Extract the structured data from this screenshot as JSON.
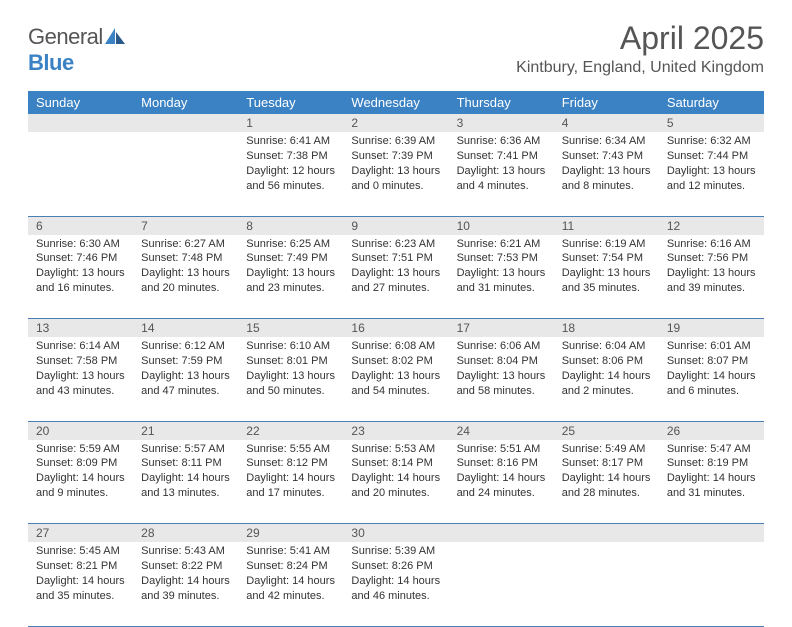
{
  "logo": {
    "text_general": "General",
    "text_blue": "Blue"
  },
  "title": "April 2025",
  "location": "Kintbury, England, United Kingdom",
  "colors": {
    "header_bg": "#3b82c4",
    "header_text": "#ffffff",
    "daynum_bg": "#e8e8e8",
    "border": "#4a7fb5",
    "text": "#333333"
  },
  "day_headers": [
    "Sunday",
    "Monday",
    "Tuesday",
    "Wednesday",
    "Thursday",
    "Friday",
    "Saturday"
  ],
  "weeks": [
    [
      {
        "n": "",
        "rise": "",
        "set": "",
        "day": ""
      },
      {
        "n": "",
        "rise": "",
        "set": "",
        "day": ""
      },
      {
        "n": "1",
        "rise": "Sunrise: 6:41 AM",
        "set": "Sunset: 7:38 PM",
        "day": "Daylight: 12 hours and 56 minutes."
      },
      {
        "n": "2",
        "rise": "Sunrise: 6:39 AM",
        "set": "Sunset: 7:39 PM",
        "day": "Daylight: 13 hours and 0 minutes."
      },
      {
        "n": "3",
        "rise": "Sunrise: 6:36 AM",
        "set": "Sunset: 7:41 PM",
        "day": "Daylight: 13 hours and 4 minutes."
      },
      {
        "n": "4",
        "rise": "Sunrise: 6:34 AM",
        "set": "Sunset: 7:43 PM",
        "day": "Daylight: 13 hours and 8 minutes."
      },
      {
        "n": "5",
        "rise": "Sunrise: 6:32 AM",
        "set": "Sunset: 7:44 PM",
        "day": "Daylight: 13 hours and 12 minutes."
      }
    ],
    [
      {
        "n": "6",
        "rise": "Sunrise: 6:30 AM",
        "set": "Sunset: 7:46 PM",
        "day": "Daylight: 13 hours and 16 minutes."
      },
      {
        "n": "7",
        "rise": "Sunrise: 6:27 AM",
        "set": "Sunset: 7:48 PM",
        "day": "Daylight: 13 hours and 20 minutes."
      },
      {
        "n": "8",
        "rise": "Sunrise: 6:25 AM",
        "set": "Sunset: 7:49 PM",
        "day": "Daylight: 13 hours and 23 minutes."
      },
      {
        "n": "9",
        "rise": "Sunrise: 6:23 AM",
        "set": "Sunset: 7:51 PM",
        "day": "Daylight: 13 hours and 27 minutes."
      },
      {
        "n": "10",
        "rise": "Sunrise: 6:21 AM",
        "set": "Sunset: 7:53 PM",
        "day": "Daylight: 13 hours and 31 minutes."
      },
      {
        "n": "11",
        "rise": "Sunrise: 6:19 AM",
        "set": "Sunset: 7:54 PM",
        "day": "Daylight: 13 hours and 35 minutes."
      },
      {
        "n": "12",
        "rise": "Sunrise: 6:16 AM",
        "set": "Sunset: 7:56 PM",
        "day": "Daylight: 13 hours and 39 minutes."
      }
    ],
    [
      {
        "n": "13",
        "rise": "Sunrise: 6:14 AM",
        "set": "Sunset: 7:58 PM",
        "day": "Daylight: 13 hours and 43 minutes."
      },
      {
        "n": "14",
        "rise": "Sunrise: 6:12 AM",
        "set": "Sunset: 7:59 PM",
        "day": "Daylight: 13 hours and 47 minutes."
      },
      {
        "n": "15",
        "rise": "Sunrise: 6:10 AM",
        "set": "Sunset: 8:01 PM",
        "day": "Daylight: 13 hours and 50 minutes."
      },
      {
        "n": "16",
        "rise": "Sunrise: 6:08 AM",
        "set": "Sunset: 8:02 PM",
        "day": "Daylight: 13 hours and 54 minutes."
      },
      {
        "n": "17",
        "rise": "Sunrise: 6:06 AM",
        "set": "Sunset: 8:04 PM",
        "day": "Daylight: 13 hours and 58 minutes."
      },
      {
        "n": "18",
        "rise": "Sunrise: 6:04 AM",
        "set": "Sunset: 8:06 PM",
        "day": "Daylight: 14 hours and 2 minutes."
      },
      {
        "n": "19",
        "rise": "Sunrise: 6:01 AM",
        "set": "Sunset: 8:07 PM",
        "day": "Daylight: 14 hours and 6 minutes."
      }
    ],
    [
      {
        "n": "20",
        "rise": "Sunrise: 5:59 AM",
        "set": "Sunset: 8:09 PM",
        "day": "Daylight: 14 hours and 9 minutes."
      },
      {
        "n": "21",
        "rise": "Sunrise: 5:57 AM",
        "set": "Sunset: 8:11 PM",
        "day": "Daylight: 14 hours and 13 minutes."
      },
      {
        "n": "22",
        "rise": "Sunrise: 5:55 AM",
        "set": "Sunset: 8:12 PM",
        "day": "Daylight: 14 hours and 17 minutes."
      },
      {
        "n": "23",
        "rise": "Sunrise: 5:53 AM",
        "set": "Sunset: 8:14 PM",
        "day": "Daylight: 14 hours and 20 minutes."
      },
      {
        "n": "24",
        "rise": "Sunrise: 5:51 AM",
        "set": "Sunset: 8:16 PM",
        "day": "Daylight: 14 hours and 24 minutes."
      },
      {
        "n": "25",
        "rise": "Sunrise: 5:49 AM",
        "set": "Sunset: 8:17 PM",
        "day": "Daylight: 14 hours and 28 minutes."
      },
      {
        "n": "26",
        "rise": "Sunrise: 5:47 AM",
        "set": "Sunset: 8:19 PM",
        "day": "Daylight: 14 hours and 31 minutes."
      }
    ],
    [
      {
        "n": "27",
        "rise": "Sunrise: 5:45 AM",
        "set": "Sunset: 8:21 PM",
        "day": "Daylight: 14 hours and 35 minutes."
      },
      {
        "n": "28",
        "rise": "Sunrise: 5:43 AM",
        "set": "Sunset: 8:22 PM",
        "day": "Daylight: 14 hours and 39 minutes."
      },
      {
        "n": "29",
        "rise": "Sunrise: 5:41 AM",
        "set": "Sunset: 8:24 PM",
        "day": "Daylight: 14 hours and 42 minutes."
      },
      {
        "n": "30",
        "rise": "Sunrise: 5:39 AM",
        "set": "Sunset: 8:26 PM",
        "day": "Daylight: 14 hours and 46 minutes."
      },
      {
        "n": "",
        "rise": "",
        "set": "",
        "day": ""
      },
      {
        "n": "",
        "rise": "",
        "set": "",
        "day": ""
      },
      {
        "n": "",
        "rise": "",
        "set": "",
        "day": ""
      }
    ]
  ]
}
